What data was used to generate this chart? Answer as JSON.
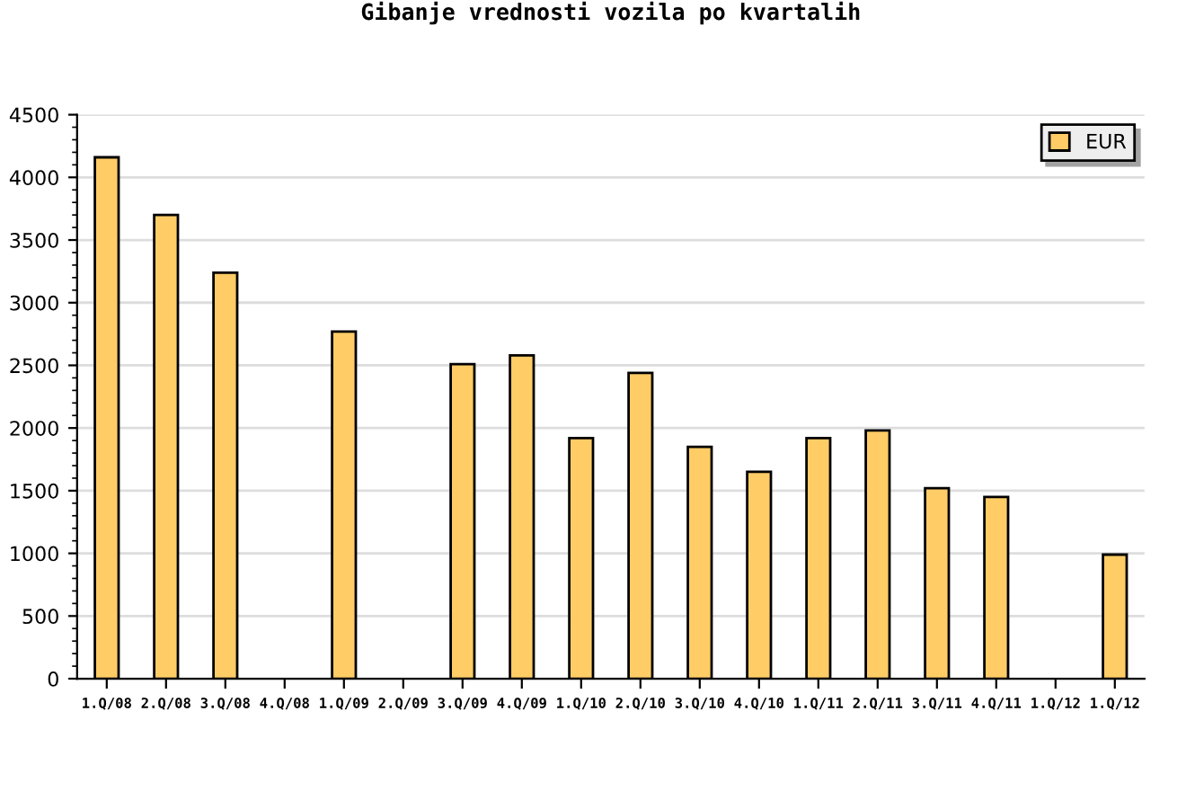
{
  "chart_data": {
    "type": "bar",
    "title": "Gibanje vrednosti vozila po kvartalih",
    "categories": [
      "1.Q/08",
      "2.Q/08",
      "3.Q/08",
      "4.Q/08",
      "1.Q/09",
      "2.Q/09",
      "3.Q/09",
      "4.Q/09",
      "1.Q/10",
      "2.Q/10",
      "3.Q/10",
      "4.Q/10",
      "1.Q/11",
      "2.Q/11",
      "3.Q/11",
      "4.Q/11",
      "1.Q/12",
      "1.Q/12"
    ],
    "series": [
      {
        "name": "EUR",
        "color": "#ffcc66",
        "values": [
          4160,
          3700,
          3240,
          null,
          2770,
          null,
          2510,
          2580,
          1920,
          2440,
          1850,
          1650,
          1920,
          1980,
          1520,
          1450,
          null,
          990
        ]
      }
    ],
    "ylim": [
      0,
      4500
    ],
    "yticks": [
      0,
      500,
      1000,
      1500,
      2000,
      2500,
      3000,
      3500,
      4000,
      4500
    ],
    "grid": "y",
    "legend": "top right"
  }
}
